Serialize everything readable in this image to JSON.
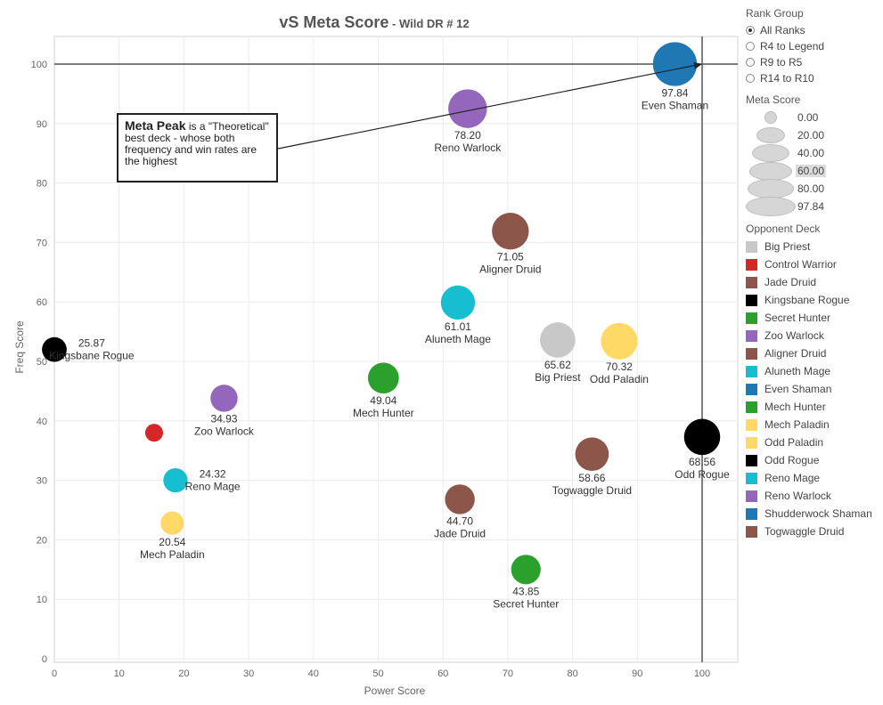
{
  "title": {
    "main": "vS Meta Score",
    "sub": " - Wild DR # 12"
  },
  "annotation": {
    "bold": "Meta Peak",
    "text": " is a \"Theoretical\" best deck - whose both frequency and win rates are the highest"
  },
  "legend": {
    "rank_group": {
      "title": "Rank Group",
      "options": [
        "All Ranks",
        "R4 to Legend",
        "R9 to R5",
        "R14 to R10"
      ],
      "selected": "All Ranks"
    },
    "meta_score": {
      "title": "Meta Score",
      "values": [
        "0.00",
        "20.00",
        "40.00",
        "60.00",
        "80.00",
        "97.84"
      ],
      "highlighted": "60.00"
    },
    "opponent_deck": {
      "title": "Opponent Deck",
      "items": [
        {
          "name": "Big Priest",
          "color": "#c8c8c8"
        },
        {
          "name": "Control Warrior",
          "color": "#d62728"
        },
        {
          "name": "Jade Druid",
          "color": "#8c564b"
        },
        {
          "name": "Kingsbane Rogue",
          "color": "#000000"
        },
        {
          "name": "Secret Hunter",
          "color": "#2ca02c"
        },
        {
          "name": "Zoo Warlock",
          "color": "#9467bd"
        },
        {
          "name": "Aligner Druid",
          "color": "#8c564b"
        },
        {
          "name": "Aluneth Mage",
          "color": "#17becf"
        },
        {
          "name": "Even Shaman",
          "color": "#1f77b4"
        },
        {
          "name": "Mech Hunter",
          "color": "#2ca02c"
        },
        {
          "name": "Mech Paladin",
          "color": "#ffd966"
        },
        {
          "name": "Odd Paladin",
          "color": "#ffd966"
        },
        {
          "name": "Odd Rogue",
          "color": "#000000"
        },
        {
          "name": "Reno Mage",
          "color": "#17becf"
        },
        {
          "name": "Reno Warlock",
          "color": "#9467bd"
        },
        {
          "name": "Shudderwock Shaman",
          "color": "#1f77b4"
        },
        {
          "name": "Togwaggle Druid",
          "color": "#8c564b"
        }
      ]
    }
  },
  "chart_data": {
    "type": "scatter",
    "title": "vS Meta Score - Wild DR # 12",
    "xlabel": "Power Score",
    "ylabel": "Freq Score",
    "xlim": [
      0,
      105
    ],
    "ylim": [
      -2,
      105
    ],
    "xticks": [
      0,
      10,
      20,
      30,
      40,
      50,
      60,
      70,
      80,
      90,
      100
    ],
    "yticks": [
      0,
      10,
      20,
      30,
      40,
      50,
      60,
      70,
      80,
      90,
      100
    ],
    "grid": true,
    "reference_lines": {
      "x": 100,
      "y": 100
    },
    "size_encoding": "Meta Score",
    "points": [
      {
        "deck": "Kingsbane Rogue",
        "x": 0,
        "y": 52,
        "meta": 25.87,
        "label": "25.87",
        "color": "#000000"
      },
      {
        "deck": "Control Warrior",
        "x": 15.4,
        "y": 38,
        "meta": 0,
        "label": "",
        "color": "#d62728"
      },
      {
        "deck": "Zoo Warlock",
        "x": 26.2,
        "y": 43.8,
        "meta": 34.93,
        "label": "34.93",
        "color": "#9467bd"
      },
      {
        "deck": "Reno Mage",
        "x": 18.7,
        "y": 30,
        "meta": 24.32,
        "label": "24.32",
        "color": "#17becf"
      },
      {
        "deck": "Mech Paladin",
        "x": 18.2,
        "y": 22.8,
        "meta": 20.54,
        "label": "20.54",
        "color": "#ffd966"
      },
      {
        "deck": "Mech Hunter",
        "x": 50.8,
        "y": 47.2,
        "meta": 49.04,
        "label": "49.04",
        "color": "#2ca02c"
      },
      {
        "deck": "Aluneth Mage",
        "x": 62.3,
        "y": 59.9,
        "meta": 61.01,
        "label": "61.01",
        "color": "#17becf"
      },
      {
        "deck": "Aligner Druid",
        "x": 70.4,
        "y": 71.9,
        "meta": 71.05,
        "label": "71.05",
        "color": "#8c564b"
      },
      {
        "deck": "Reno Warlock",
        "x": 63.8,
        "y": 92.5,
        "meta": 78.2,
        "label": "78.20",
        "color": "#9467bd"
      },
      {
        "deck": "Even Shaman",
        "x": 95.8,
        "y": 100,
        "meta": 97.84,
        "label": "97.84",
        "color": "#1f77b4"
      },
      {
        "deck": "Big Priest",
        "x": 77.7,
        "y": 53.6,
        "meta": 65.62,
        "label": "65.62",
        "color": "#c8c8c8"
      },
      {
        "deck": "Odd Paladin",
        "x": 87.2,
        "y": 53.4,
        "meta": 70.32,
        "label": "70.32",
        "color": "#ffd966"
      },
      {
        "deck": "Odd Rogue",
        "x": 100,
        "y": 37.3,
        "meta": 68.56,
        "label": "68.56",
        "color": "#000000"
      },
      {
        "deck": "Togwaggle Druid",
        "x": 83.0,
        "y": 34.4,
        "meta": 58.66,
        "label": "58.66",
        "color": "#8c564b"
      },
      {
        "deck": "Jade Druid",
        "x": 62.6,
        "y": 26.8,
        "meta": 44.7,
        "label": "44.70",
        "color": "#8c564b"
      },
      {
        "deck": "Secret Hunter",
        "x": 72.8,
        "y": 15,
        "meta": 43.85,
        "label": "43.85",
        "color": "#2ca02c"
      }
    ]
  }
}
